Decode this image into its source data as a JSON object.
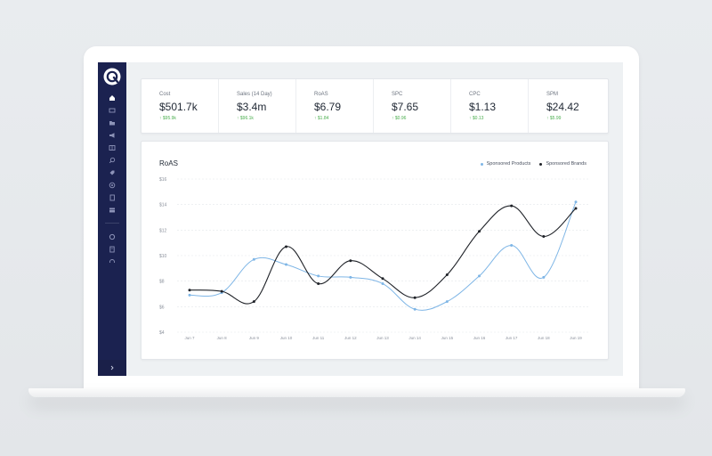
{
  "kpis": [
    {
      "label": "Cost",
      "value": "$501.7k",
      "delta": "↑ $95.9k"
    },
    {
      "label": "Sales (14 Day)",
      "value": "$3.4m",
      "delta": "↑ $96.1k"
    },
    {
      "label": "RoAS",
      "value": "$6.79",
      "delta": "↑ $1.84"
    },
    {
      "label": "SPC",
      "value": "$7.65",
      "delta": "↑ $0.96"
    },
    {
      "label": "CPC",
      "value": "$1.13",
      "delta": "↑ $0.13"
    },
    {
      "label": "SPM",
      "value": "$24.42",
      "delta": "↑ $5.99"
    }
  ],
  "sidebar": {
    "items": [
      {
        "icon": "home-icon"
      },
      {
        "icon": "dashboard-icon"
      },
      {
        "icon": "folder-icon"
      },
      {
        "icon": "megaphone-icon"
      },
      {
        "icon": "grid-icon"
      },
      {
        "icon": "search-icon"
      },
      {
        "icon": "tag-icon"
      },
      {
        "icon": "target-icon"
      },
      {
        "icon": "document-icon"
      },
      {
        "icon": "table-icon"
      },
      {
        "icon": "settings-icon"
      },
      {
        "icon": "report-icon"
      },
      {
        "icon": "support-icon"
      }
    ],
    "collapse_icon": "chevron-right-icon"
  },
  "colors": {
    "sidebar_bg": "#1b2250",
    "sponsored_products": "#7fb6e6",
    "sponsored_brands": "#1f2228",
    "positive_delta": "#4caf50"
  },
  "chart_data": {
    "type": "line",
    "title": "RoAS",
    "categories": [
      "Jun 7",
      "Jun 8",
      "Jun 9",
      "Jun 10",
      "Jun 11",
      "Jun 12",
      "Jun 13",
      "Jun 14",
      "Jun 15",
      "Jun 16",
      "Jun 17",
      "Jun 18",
      "Jun 19"
    ],
    "series": [
      {
        "name": "Sponsored Products",
        "values": [
          6.9,
          7.1,
          9.7,
          9.3,
          8.4,
          8.3,
          7.8,
          5.8,
          6.4,
          8.4,
          10.8,
          8.3,
          14.2
        ]
      },
      {
        "name": "Sponsored Brands",
        "values": [
          7.3,
          7.2,
          6.4,
          10.7,
          7.8,
          9.6,
          8.2,
          6.7,
          8.5,
          11.9,
          13.9,
          11.5,
          13.7
        ]
      }
    ],
    "ylim": [
      4,
      16
    ],
    "yticks": [
      "$4",
      "$6",
      "$8",
      "$10",
      "$12",
      "$14",
      "$16"
    ],
    "grid": true,
    "legend": "top-right"
  }
}
